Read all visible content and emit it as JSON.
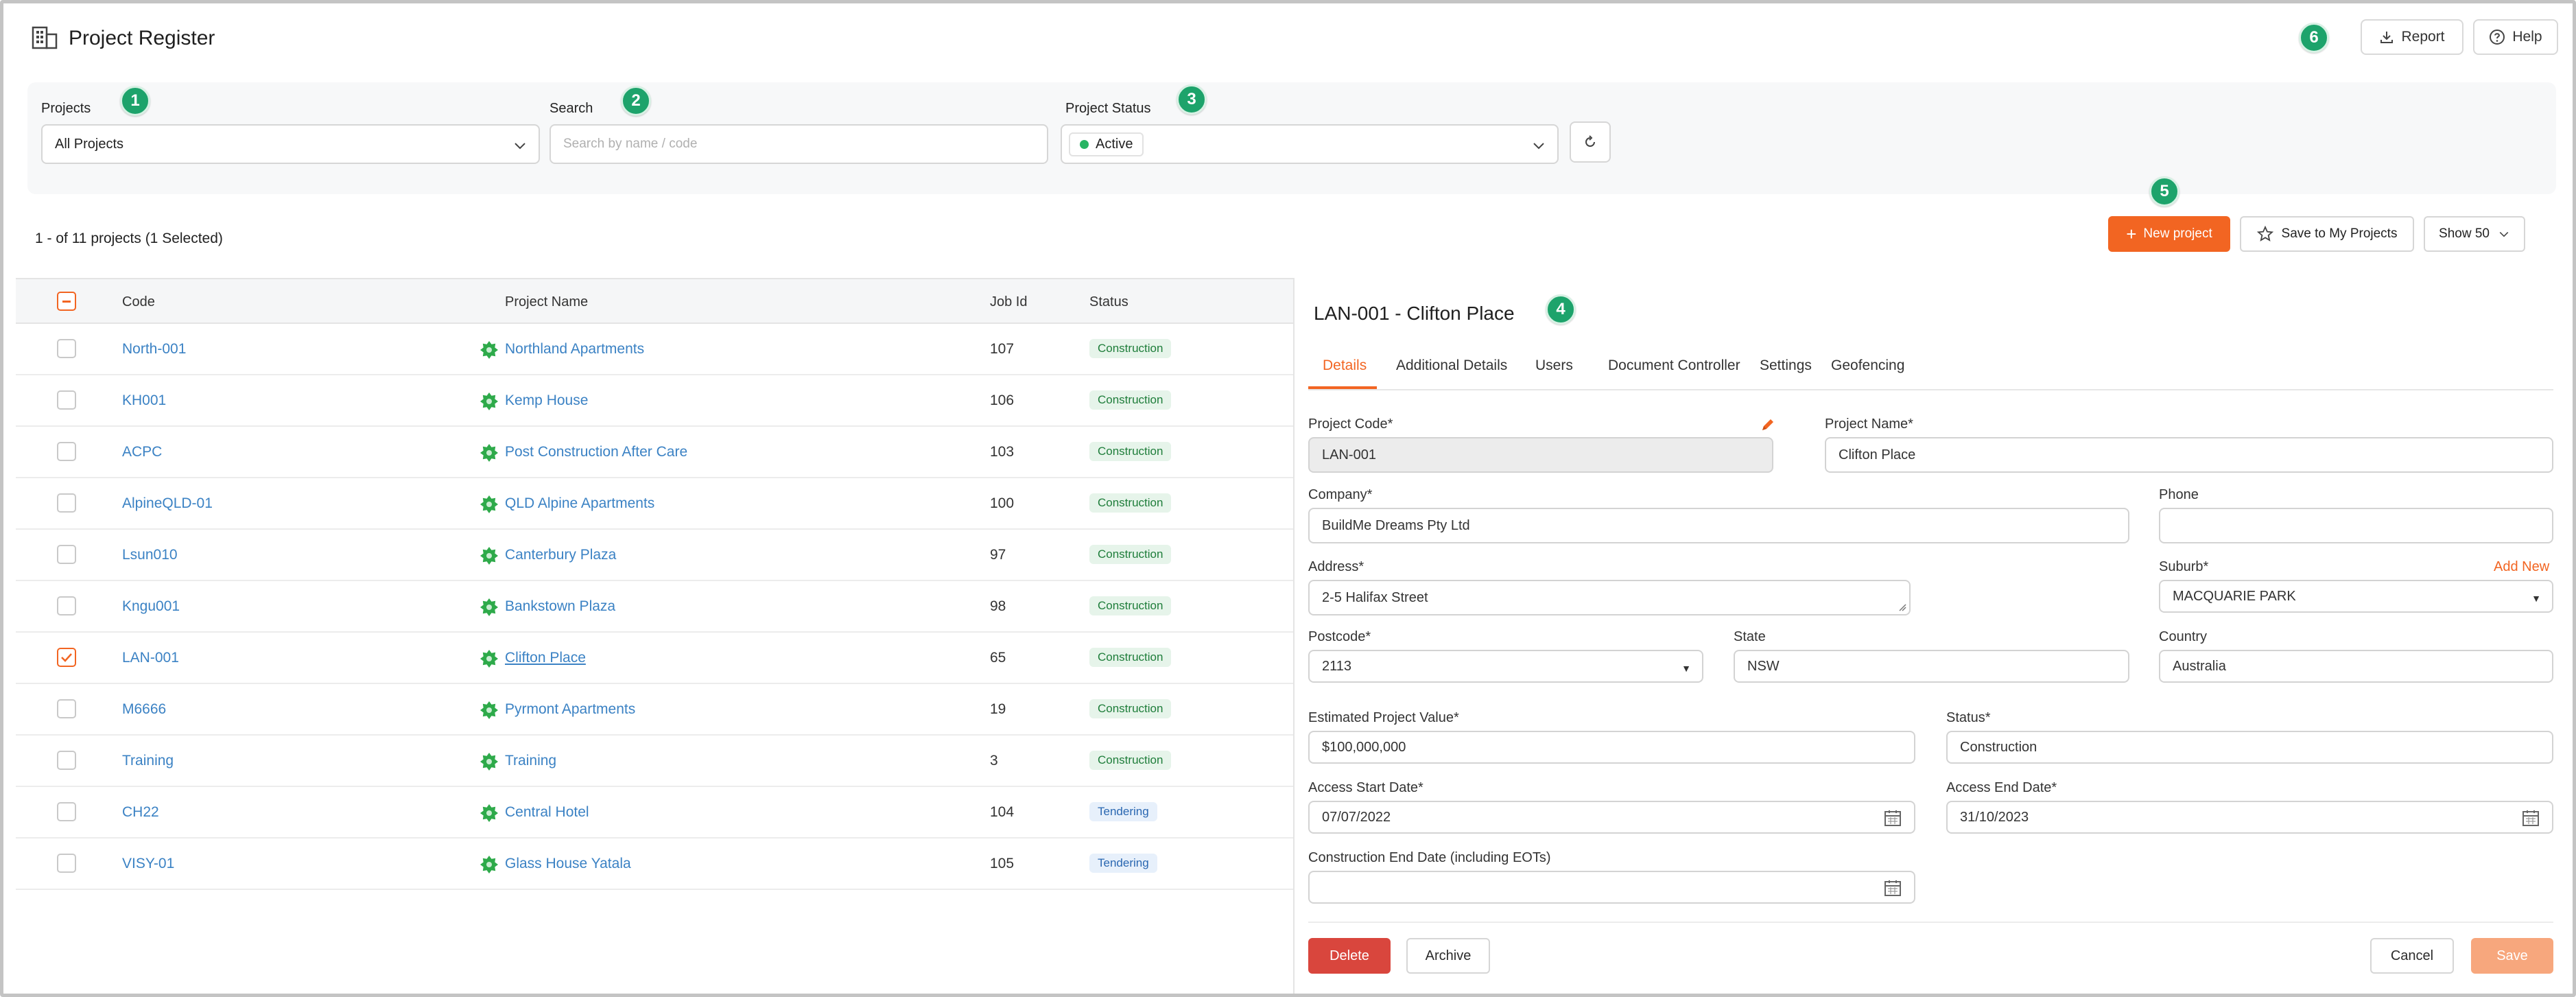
{
  "header": {
    "title": "Project Register",
    "report_label": "Report",
    "help_label": "Help"
  },
  "markers": [
    "1",
    "2",
    "3",
    "4",
    "5",
    "6"
  ],
  "filters": {
    "projects_label": "Projects",
    "projects_value": "All Projects",
    "search_label": "Search",
    "search_placeholder": "Search by name / code",
    "status_label": "Project Status",
    "status_value": "Active"
  },
  "toolbar": {
    "count_text": "1 - of 11 projects (1 Selected)",
    "new_project_label": "New project",
    "save_my_projects_label": "Save to My Projects",
    "show_label": "Show 50"
  },
  "table": {
    "columns": [
      "Code",
      "Project Name",
      "Job Id",
      "Status"
    ],
    "rows": [
      {
        "code": "North-001",
        "name": "Northland Apartments",
        "job_id": "107",
        "status": "Construction",
        "checked": false
      },
      {
        "code": "KH001",
        "name": "Kemp House",
        "job_id": "106",
        "status": "Construction",
        "checked": false
      },
      {
        "code": "ACPC",
        "name": "Post Construction After Care",
        "job_id": "103",
        "status": "Construction",
        "checked": false
      },
      {
        "code": "AlpineQLD-01",
        "name": "QLD Alpine Apartments",
        "job_id": "100",
        "status": "Construction",
        "checked": false
      },
      {
        "code": "Lsun010",
        "name": "Canterbury Plaza",
        "job_id": "97",
        "status": "Construction",
        "checked": false
      },
      {
        "code": "Kngu001",
        "name": "Bankstown Plaza",
        "job_id": "98",
        "status": "Construction",
        "checked": false
      },
      {
        "code": "LAN-001",
        "name": "Clifton Place",
        "job_id": "65",
        "status": "Construction",
        "checked": true
      },
      {
        "code": "M6666",
        "name": "Pyrmont Apartments",
        "job_id": "19",
        "status": "Construction",
        "checked": false
      },
      {
        "code": "Training",
        "name": "Training",
        "job_id": "3",
        "status": "Construction",
        "checked": false
      },
      {
        "code": "CH22",
        "name": "Central Hotel",
        "job_id": "104",
        "status": "Tendering",
        "checked": false
      },
      {
        "code": "VISY-01",
        "name": "Glass House Yatala",
        "job_id": "105",
        "status": "Tendering",
        "checked": false
      }
    ]
  },
  "detail": {
    "title": "LAN-001 - Clifton Place",
    "tabs": [
      "Details",
      "Additional Details",
      "Users",
      "Document Controller",
      "Settings",
      "Geofencing"
    ],
    "fields": {
      "project_code_label": "Project Code*",
      "project_code_value": "LAN-001",
      "project_name_label": "Project Name*",
      "project_name_value": "Clifton Place",
      "company_label": "Company*",
      "company_value": "BuildMe Dreams Pty Ltd",
      "phone_label": "Phone",
      "phone_value": "",
      "address_label": "Address*",
      "address_value": "2-5 Halifax Street",
      "suburb_label": "Suburb*",
      "suburb_value": "MACQUARIE PARK",
      "add_new_label": "Add New",
      "postcode_label": "Postcode*",
      "postcode_value": "2113",
      "state_label": "State",
      "state_value": "NSW",
      "country_label": "Country",
      "country_value": "Australia",
      "est_value_label": "Estimated Project Value*",
      "est_value_value": "$100,000,000",
      "status_label": "Status*",
      "status_value": "Construction",
      "access_start_label": "Access Start Date*",
      "access_start_value": "07/07/2022",
      "access_end_label": "Access End Date*",
      "access_end_value": "31/10/2023",
      "construction_end_label": "Construction End Date (including EOTs)",
      "construction_end_value": ""
    },
    "buttons": {
      "delete": "Delete",
      "archive": "Archive",
      "cancel": "Cancel",
      "save": "Save"
    }
  },
  "colors": {
    "accent": "#f26522",
    "link": "#3b82c4",
    "badge": "#1da36b",
    "delete": "#d9463d"
  }
}
